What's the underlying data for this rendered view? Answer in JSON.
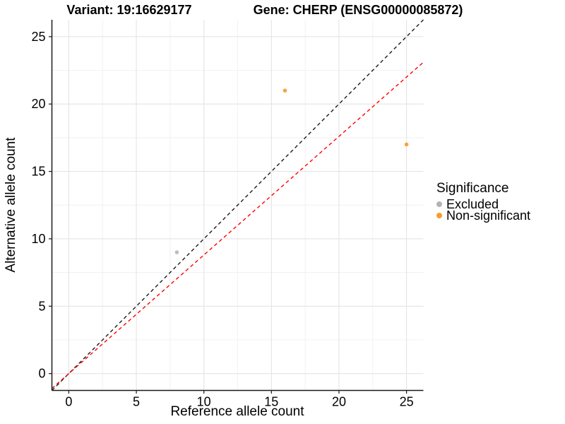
{
  "header": {
    "variant_title": "Variant: 19:16629177",
    "gene_title": "Gene: CHERP (ENSG00000085872)"
  },
  "chart_data": {
    "type": "scatter",
    "xlabel": "Reference allele count",
    "ylabel": "Alternative allele count",
    "xlim": [
      -1.25,
      26.25
    ],
    "ylim": [
      -1.25,
      26.25
    ],
    "x_ticks": [
      0,
      5,
      10,
      15,
      20,
      25
    ],
    "y_ticks": [
      0,
      5,
      10,
      15,
      20,
      25
    ],
    "x_minor_ticks": [
      2.5,
      7.5,
      12.5,
      17.5,
      22.5
    ],
    "y_minor_ticks": [
      2.5,
      7.5,
      12.5,
      17.5,
      22.5
    ],
    "grid": true,
    "series": [
      {
        "name": "Excluded",
        "color": "#BDBDBD",
        "points": [
          {
            "x": 8,
            "y": 9
          }
        ]
      },
      {
        "name": "Non-significant",
        "color": "#FAA23C",
        "points": [
          {
            "x": 16,
            "y": 21
          },
          {
            "x": 25,
            "y": 17
          }
        ]
      }
    ],
    "lines": [
      {
        "name": "identity-line",
        "slope": 1,
        "intercept": 0,
        "color": "#1A1A1A",
        "style": "dashed"
      },
      {
        "name": "expected-ratio-line",
        "slope": 0.88,
        "intercept": 0,
        "color": "#FF0000",
        "style": "dashed"
      }
    ],
    "legend": {
      "title": "Significance",
      "position": "right",
      "entries": [
        {
          "label": "Excluded",
          "color": "#B3B3B3"
        },
        {
          "label": "Non-significant",
          "color": "#FB9B2A"
        }
      ]
    },
    "style": {
      "grid_major_color": "#E4E4E4",
      "grid_minor_color": "#F0F0F0",
      "axis_line_color": "#1A1A1A",
      "tick_label_color": "#000000"
    }
  }
}
